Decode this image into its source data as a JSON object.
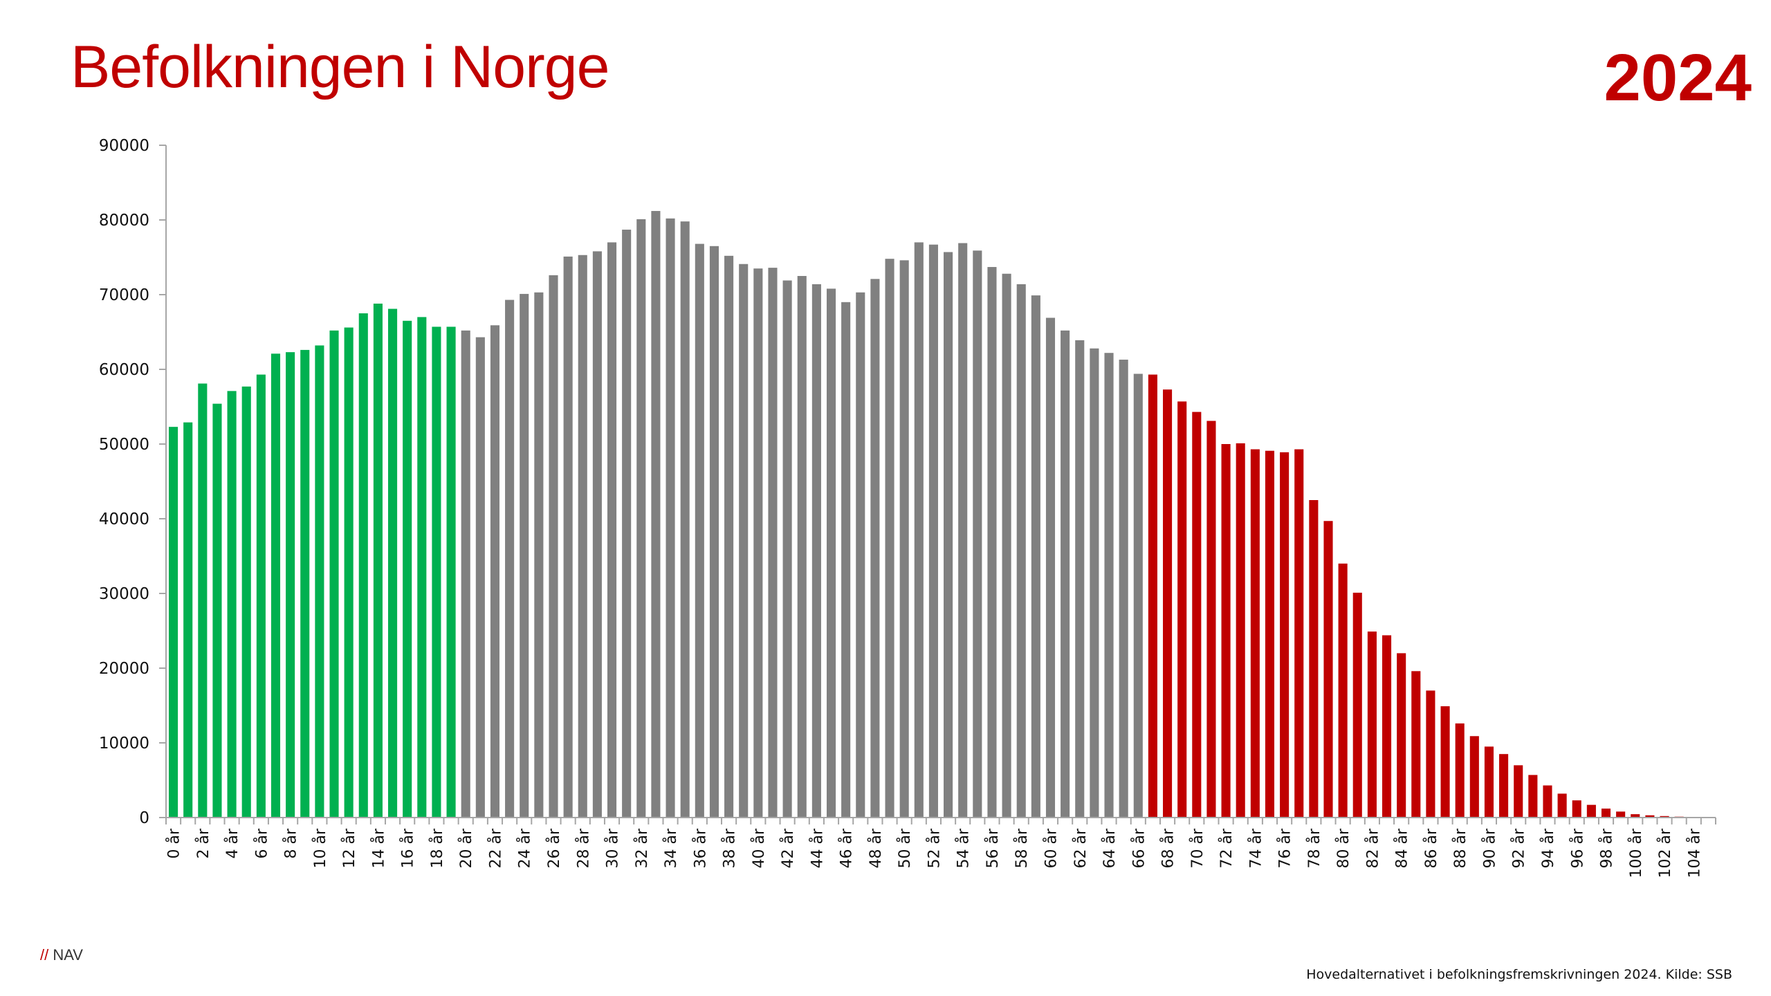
{
  "page": {
    "title": "Befolkningen i Norge",
    "year": "2024",
    "brand_slash": "//",
    "brand": "NAV",
    "source": "Hovedalternativet i befolkningsfremskrivningen 2024. Kilde: SSB"
  },
  "colors": {
    "title": "#c00000",
    "children": "#00b050",
    "working_age": "#808080",
    "seniors": "#c00000",
    "axis": "#a6a6a6"
  },
  "chart_data": {
    "type": "bar",
    "title": "Befolkningen i Norge",
    "xlabel": "",
    "ylabel": "",
    "ylim": [
      0,
      90000
    ],
    "yticks": [
      "0",
      "10000",
      "20000",
      "30000",
      "40000",
      "50000",
      "60000",
      "70000",
      "80000",
      "90000"
    ],
    "grid": false,
    "legend": "none",
    "categories": [
      "0 år",
      "1 år",
      "2 år",
      "3 år",
      "4 år",
      "5 år",
      "6 år",
      "7 år",
      "8 år",
      "9 år",
      "10 år",
      "11 år",
      "12 år",
      "13 år",
      "14 år",
      "15 år",
      "16 år",
      "17 år",
      "18 år",
      "19 år",
      "20 år",
      "21 år",
      "22 år",
      "23 år",
      "24 år",
      "25 år",
      "26 år",
      "27 år",
      "28 år",
      "29 år",
      "30 år",
      "31 år",
      "32 år",
      "33 år",
      "34 år",
      "35 år",
      "36 år",
      "37 år",
      "38 år",
      "39 år",
      "40 år",
      "41 år",
      "42 år",
      "43 år",
      "44 år",
      "45 år",
      "46 år",
      "47 år",
      "48 år",
      "49 år",
      "50 år",
      "51 år",
      "52 år",
      "53 år",
      "54 år",
      "55 år",
      "56 år",
      "57 år",
      "58 år",
      "59 år",
      "60 år",
      "61 år",
      "62 år",
      "63 år",
      "64 år",
      "65 år",
      "66 år",
      "67 år",
      "68 år",
      "69 år",
      "70 år",
      "71 år",
      "72 år",
      "73 år",
      "74 år",
      "75 år",
      "76 år",
      "77 år",
      "78 år",
      "79 år",
      "80 år",
      "81 år",
      "82 år",
      "83 år",
      "84 år",
      "85 år",
      "86 år",
      "87 år",
      "88 år",
      "89 år",
      "90 år",
      "91 år",
      "92 år",
      "93 år",
      "94 år",
      "95 år",
      "96 år",
      "97 år",
      "98 år",
      "99 år",
      "100 år",
      "101 år",
      "102 år",
      "103 år",
      "104 år",
      "105 år"
    ],
    "values": [
      52300,
      52900,
      58100,
      55400,
      57100,
      57700,
      59300,
      62100,
      62300,
      62600,
      63200,
      65200,
      65600,
      67500,
      68800,
      68100,
      66500,
      67000,
      65700,
      65700,
      65200,
      64300,
      65900,
      69300,
      70100,
      70300,
      72600,
      75100,
      75300,
      75800,
      77000,
      78700,
      80100,
      81200,
      80200,
      79800,
      76800,
      76500,
      75200,
      74100,
      73500,
      73600,
      71900,
      72500,
      71400,
      70800,
      69000,
      70300,
      72100,
      74800,
      74600,
      77000,
      76700,
      75700,
      76900,
      75900,
      73700,
      72800,
      71400,
      69900,
      66900,
      65200,
      63900,
      62800,
      62200,
      61300,
      59400,
      59300,
      57300,
      55700,
      54300,
      53100,
      50000,
      50100,
      49300,
      49100,
      48900,
      49300,
      42500,
      39700,
      34000,
      30100,
      24900,
      24400,
      22000,
      19600,
      17000,
      14900,
      12600,
      10900,
      9500,
      8500,
      7000,
      5700,
      4300,
      3200,
      2300,
      1700,
      1200,
      800,
      450,
      300,
      200,
      120,
      60,
      30
    ],
    "series": [
      {
        "name": "",
        "range": [
          "0 år",
          "19 år"
        ],
        "color": "#00b050"
      },
      {
        "name": "",
        "range": [
          "20 år",
          "66 år"
        ],
        "color": "#808080"
      },
      {
        "name": "",
        "range": [
          "67 år",
          "105 år"
        ],
        "color": "#c00000"
      }
    ],
    "xtick_labels": [
      "0 år",
      "2 år",
      "4 år",
      "6 år",
      "8 år",
      "10 år",
      "12 år",
      "14 år",
      "16 år",
      "18 år",
      "20 år",
      "22 år",
      "24 år",
      "26 år",
      "28 år",
      "30 år",
      "32 år",
      "34 år",
      "36 år",
      "38 år",
      "40 år",
      "42 år",
      "44 år",
      "46 år",
      "48 år",
      "50 år",
      "52 år",
      "54 år",
      "56 år",
      "58 år",
      "60 år",
      "62 år",
      "64 år",
      "66 år",
      "68 år",
      "70 år",
      "72 år",
      "74 år",
      "76 år",
      "78 år",
      "80 år",
      "82 år",
      "84 år",
      "86 år",
      "88 år",
      "90 år",
      "92 år",
      "94 år",
      "96 år",
      "98 år",
      "100 år",
      "102 år",
      "104 år"
    ]
  }
}
